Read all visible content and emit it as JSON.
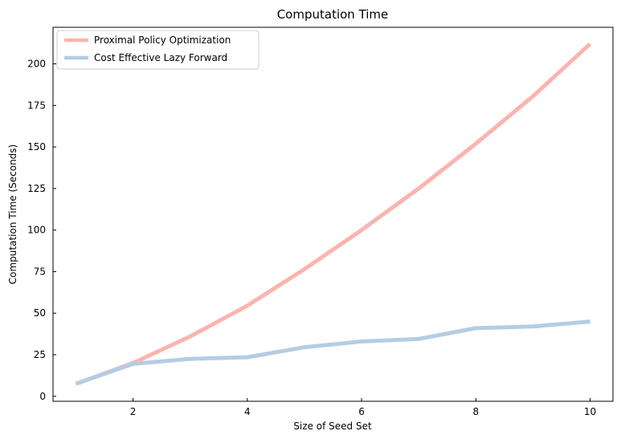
{
  "chart_data": {
    "type": "line",
    "title": "Computation Time",
    "xlabel": "Size of Seed Set",
    "ylabel": "Computation Time (Seconds)",
    "xlim": [
      0.6,
      10.4
    ],
    "ylim": [
      -3,
      222
    ],
    "xticks": [
      2,
      4,
      6,
      8,
      10
    ],
    "yticks": [
      0,
      25,
      50,
      75,
      100,
      125,
      150,
      175,
      200
    ],
    "grid": false,
    "legend_position": "top-left",
    "x": [
      1,
      2,
      3,
      4,
      5,
      6,
      7,
      8,
      9,
      10
    ],
    "series": [
      {
        "name": "Proximal Policy Optimization",
        "color": "#fbb4ae",
        "values": [
          7.5,
          20,
          36,
          54.5,
          76.5,
          100,
          125,
          152,
          180.5,
          212
        ]
      },
      {
        "name": "Cost Effective Lazy Forward",
        "color": "#b3cde3",
        "values": [
          7.5,
          19.5,
          22.5,
          23.5,
          29.5,
          33,
          34.5,
          41,
          42,
          45
        ]
      }
    ]
  }
}
